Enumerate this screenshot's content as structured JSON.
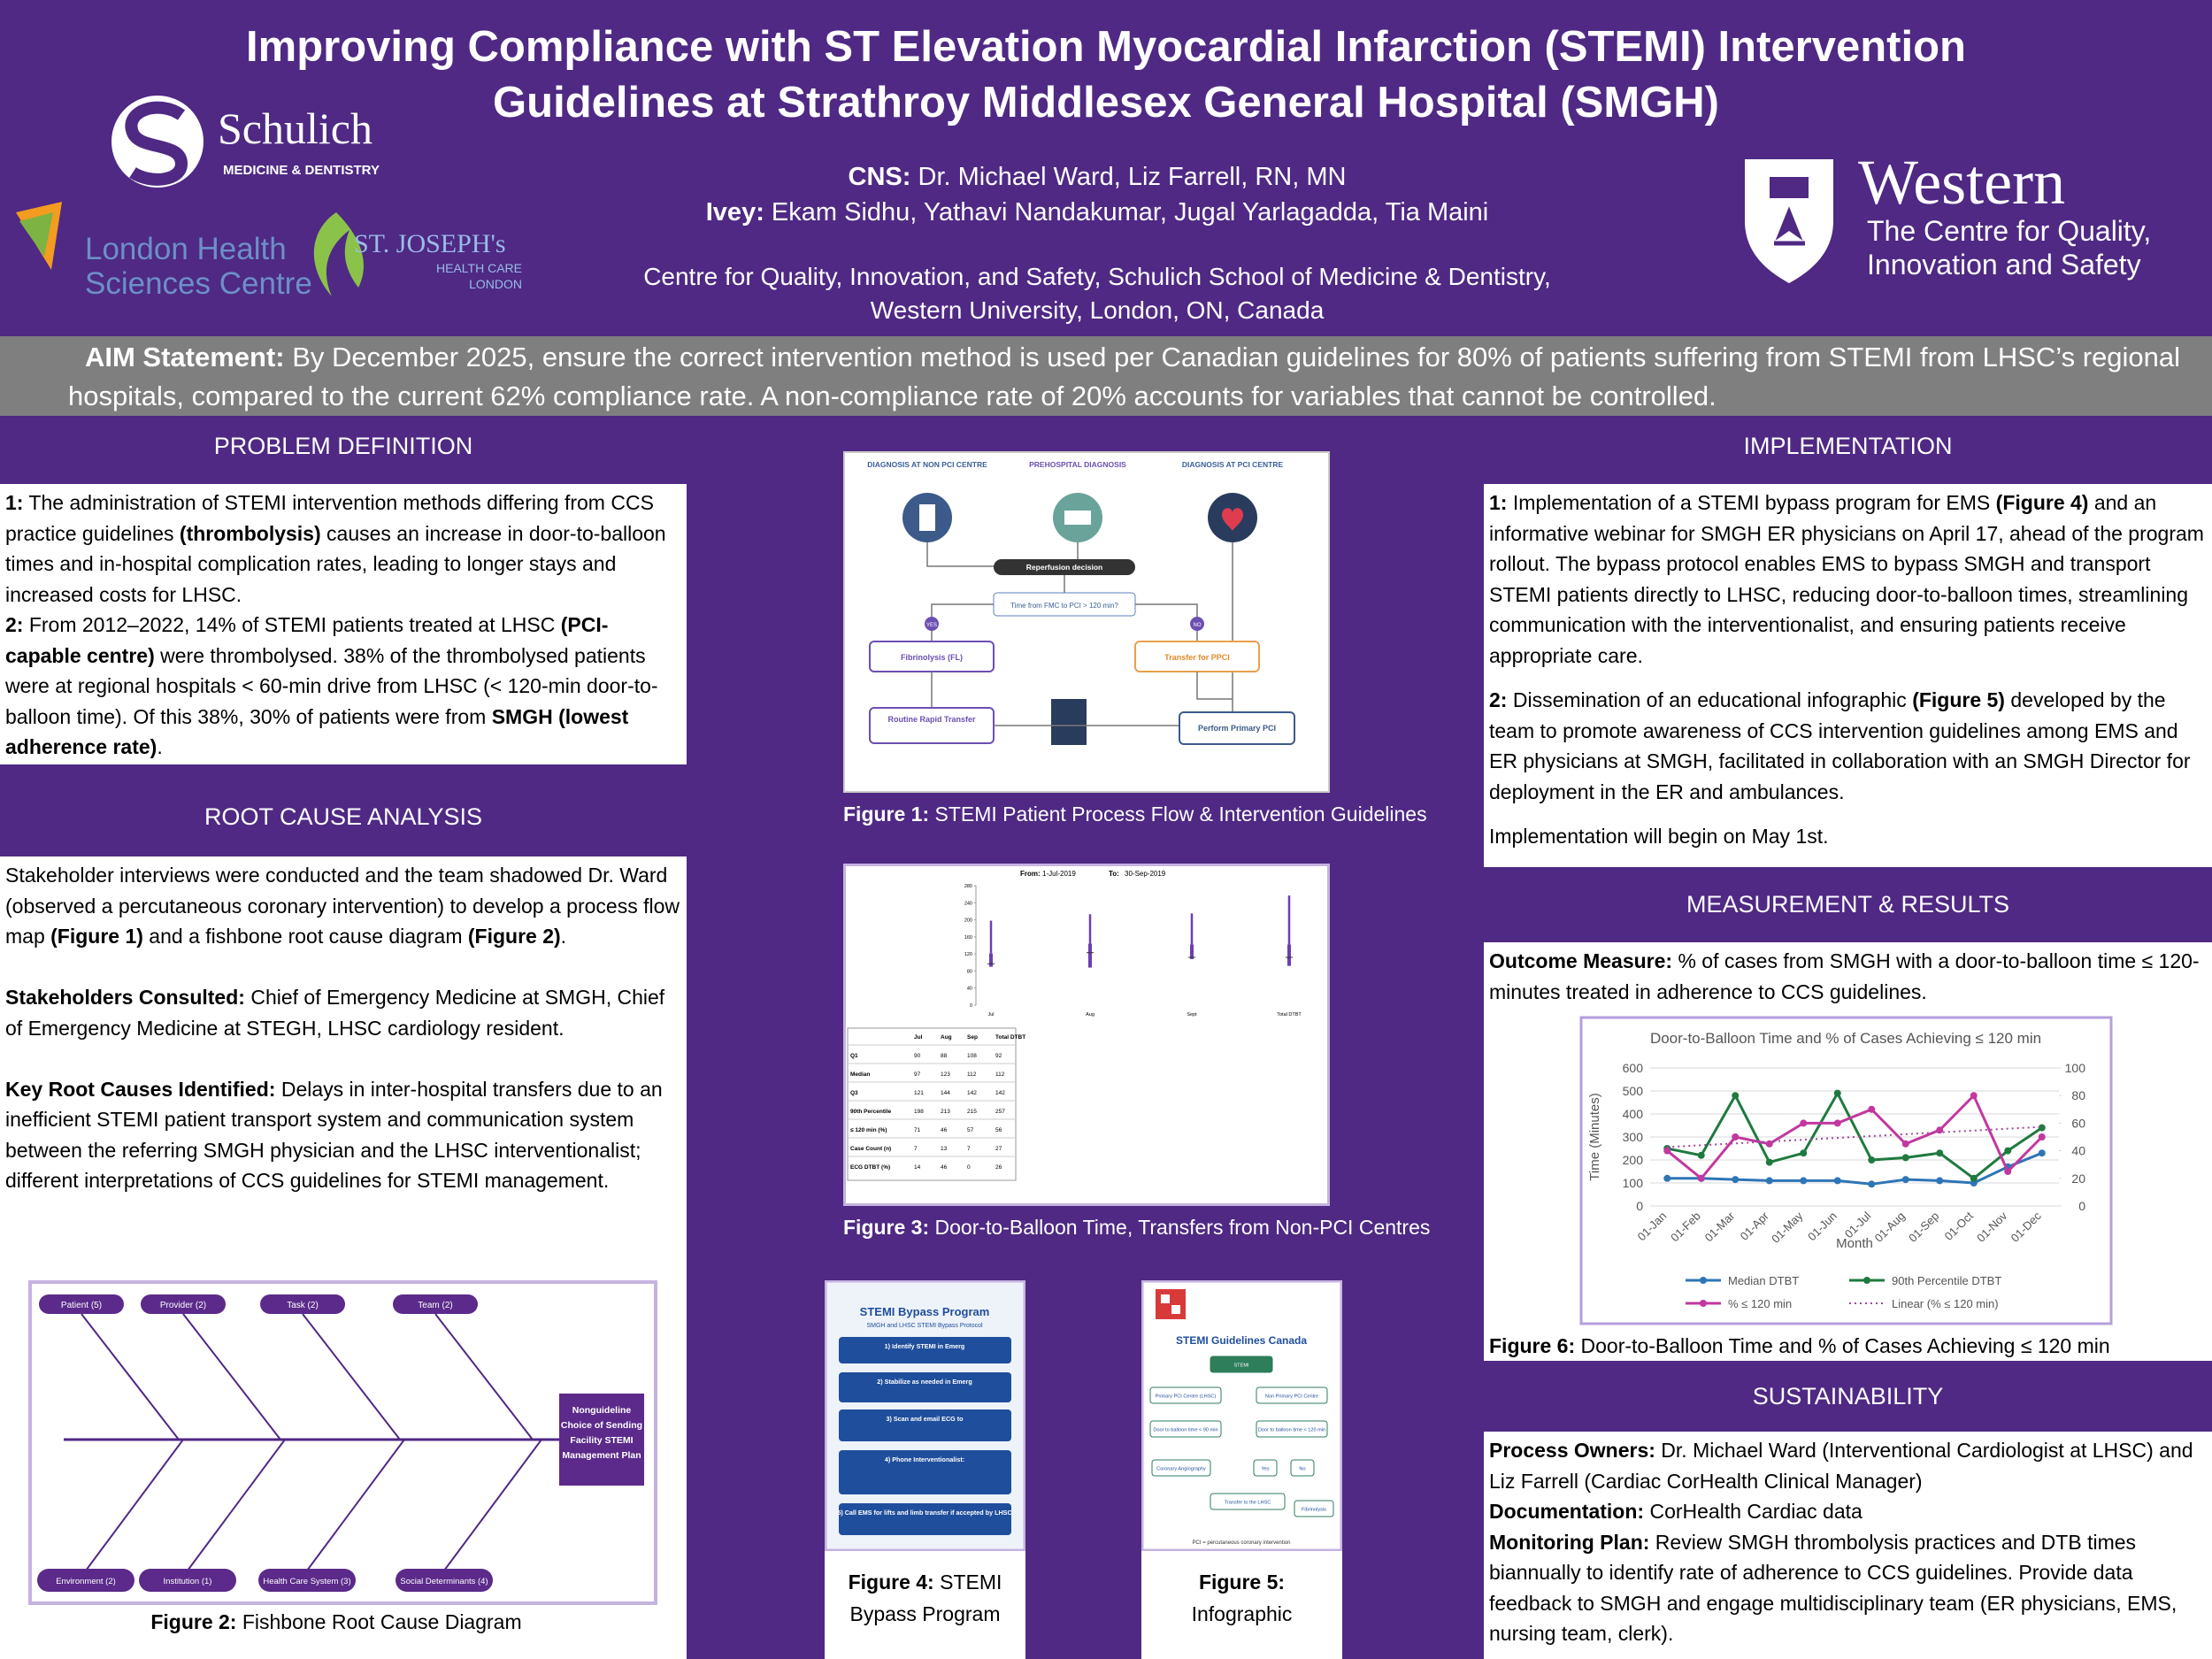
{
  "header": {
    "title_lines": [
      "Improving Compliance with ST Elevation Myocardial Infarction (STEMI) Intervention",
      "Guidelines at Strathroy Middlesex General Hospital (SMGH)"
    ],
    "authors": [
      [
        {
          "text": "CNS:",
          "bold": true
        },
        " Dr. Michael Ward, Liz Farrell, RN, MN"
      ],
      [
        {
          "text": "Ivey:",
          "bold": true
        },
        " Ekam Sidhu, Yathavi Nandakumar, Jugal Yarlagadda, Tia Maini"
      ]
    ],
    "affiliation_lines": [
      "Centre for Quality, Innovation, and Safety, Schulich School of Medicine & Dentistry,",
      "Western University, London, ON, Canada"
    ]
  },
  "logos": {
    "schulich": {
      "name": "Schulich",
      "sub": "MEDICINE & DENTISTRY"
    },
    "lhsc": [
      "London Health",
      "Sciences Centre"
    ],
    "st_josephs": {
      "name": "ST. JOSEPH's",
      "lines": [
        "HEALTH CARE",
        "LONDON"
      ]
    },
    "western": {
      "name": "Western",
      "lines": [
        "The Centre for Quality,",
        "Innovation and Safety"
      ]
    }
  },
  "aim": [
    {
      "text": "AIM Statement:",
      "bold": true
    },
    " By December 2025, ensure the correct intervention method is used per Canadian guidelines for 80% of patients suffering from STEMI from LHSC’s regional hospitals, compared to the current 62% compliance rate. A non-compliance rate of 20% accounts for variables that cannot be controlled."
  ],
  "problem_definition": {
    "heading": "PROBLEM DEFINITION",
    "paragraphs": [
      [
        {
          "text": "1:",
          "bold": true
        },
        " The administration of STEMI intervention methods differing from CCS practice guidelines ",
        {
          "text": "(thrombolysis)",
          "bold": true
        },
        " causes an increase in door-to-balloon times and in-hospital complication rates, leading to longer stays and increased costs for LHSC."
      ],
      [
        {
          "text": "2:",
          "bold": true
        },
        " From 2012–2022, 14% of STEMI patients treated at LHSC ",
        {
          "text": "(PCI-capable centre)",
          "bold": true
        },
        " were thrombolysed. 38% of the thrombolysed patients were at regional hospitals < 60-min drive from LHSC (< 120-min door-to-balloon time). Of this 38%, 30% of patients were from ",
        {
          "text": "SMGH (lowest adherence rate)",
          "bold": true
        },
        "."
      ]
    ]
  },
  "root_cause_analysis": {
    "heading": "ROOT CAUSE ANALYSIS",
    "paragraphs": [
      [
        "Stakeholder interviews were conducted and the team shadowed Dr. Ward (observed a percutaneous coronary intervention) to develop a process flow map ",
        {
          "text": "(Figure 1)",
          "bold": true
        },
        " and a fishbone root cause diagram ",
        {
          "text": "(Figure 2)",
          "bold": true
        },
        "."
      ],
      [
        {
          "text": "Stakeholders Consulted:",
          "bold": true
        },
        " Chief of Emergency Medicine at SMGH, Chief of Emergency Medicine at STEGH, LHSC cardiology resident."
      ],
      [
        {
          "text": "Key Root Causes Identified:",
          "bold": true
        },
        " Delays in inter-hospital transfers due to an inefficient STEMI patient transport system and communication system between the referring SMGH physician and the LHSC interventionalist; different interpretations of CCS guidelines for STEMI management."
      ]
    ]
  },
  "figure_1": {
    "columns": [
      "DIAGNOSIS AT NON PCI CENTRE",
      "PREHOSPITAL DIAGNOSIS",
      "DIAGNOSIS AT PCI CENTRE"
    ],
    "decision": "Reperfusion decision",
    "question": "Time from FMC to PCI > 120 min?",
    "yes": "YES",
    "no": "NO",
    "fibrinolysis": "Fibrinolysis (FL)",
    "transfer": "Transfer for PPCI",
    "rapid": "Routine Rapid Transfer",
    "ppci": "Perform Primary PCI",
    "caption": [
      {
        "text": "Figure 1:",
        "bold": true
      },
      " STEMI Patient Process Flow & Intervention Guidelines"
    ]
  },
  "figure_2": {
    "top": [
      "Patient (5)",
      "Provider (2)",
      "Task (2)",
      "Team (2)"
    ],
    "bottom": [
      "Environment (2)",
      "Institution (1)",
      "Health Care System (3)",
      "Social Determinants (4)"
    ],
    "head": [
      "Nonguideline",
      "Choice of Sending",
      "Facility STEMI",
      "Management Plan"
    ],
    "caption": [
      {
        "text": "Figure 2:",
        "bold": true
      },
      " Fishbone Root Cause Diagram"
    ]
  },
  "figure_3": {
    "range": [
      "From:",
      "1-Jul-2019",
      "To:",
      "30-Sep-2019"
    ],
    "ylim": [
      0,
      280
    ],
    "yticks": [
      0,
      40,
      80,
      120,
      160,
      200,
      240,
      280
    ],
    "plot_categories": [
      "Jul",
      "Aug",
      "Sept",
      "Total DTBT"
    ],
    "table": {
      "header": [
        "Jul",
        "Aug",
        "Sep",
        "Total DTBT"
      ],
      "rows": [
        {
          "label": "Q1",
          "values": [
            90,
            88,
            108,
            92
          ]
        },
        {
          "label": "Median",
          "values": [
            97,
            123,
            112,
            112
          ]
        },
        {
          "label": "Q3",
          "values": [
            121,
            144,
            142,
            142
          ]
        },
        {
          "label": "90th Percentile",
          "values": [
            198,
            213,
            215,
            257
          ]
        },
        {
          "label": "≤ 120 min (%)",
          "values": [
            71,
            46,
            57,
            56
          ]
        },
        {
          "label": "Case Count (n)",
          "values": [
            7,
            13,
            7,
            27
          ]
        },
        {
          "label": "ECG DTBT (%)",
          "values": [
            14,
            46,
            0,
            26
          ]
        }
      ]
    },
    "caption": [
      {
        "text": "Figure 3:",
        "bold": true
      },
      " Door-to-Balloon Time, Transfers from Non-PCI Centres"
    ]
  },
  "figure_4": {
    "title": "STEMI Bypass Program",
    "subtitle": "SMGH and LHSC STEMI Bypass Protocol",
    "steps": [
      "1) Identify STEMI in Emerg",
      "2) Stabilize as needed in Emerg",
      "3) Scan and email ECG to",
      "4) Phone Interventionalist:",
      "5) Call EMS for lifts and limb transfer if accepted by LHSC"
    ],
    "caption_lines": [
      [
        {
          "text": "Figure 4:",
          "bold": true
        },
        " STEMI"
      ],
      [
        "Bypass Program"
      ]
    ]
  },
  "figure_5": {
    "title": "STEMI Guidelines Canada",
    "nodes": [
      "STEMI",
      "Primary PCI Centre (LHSC)",
      "Non Primary PCI Centre",
      "Door to balloon time < 90 min",
      "Door to balloon time < 120 min",
      "Coronary Angiography",
      "Yes",
      "No",
      "Transfer to the LHSC",
      "Fibrinolysis"
    ],
    "footnote": "PCI = percutaneous coronary intervention",
    "caption_lines": [
      [
        {
          "text": "Figure 5:",
          "bold": true
        }
      ],
      [
        "Infographic"
      ]
    ]
  },
  "implementation": {
    "heading": "IMPLEMENTATION",
    "paragraphs": [
      [
        {
          "text": "1:",
          "bold": true
        },
        " Implementation of a STEMI bypass program for EMS ",
        {
          "text": "(Figure 4)",
          "bold": true
        },
        " and an informative webinar for SMGH ER physicians on April 17, ahead of the program rollout. The bypass protocol enables EMS to bypass SMGH and transport STEMI patients directly to LHSC, reducing door-to-balloon times, streamlining communication with the interventionalist, and ensuring patients receive appropriate care."
      ],
      [
        {
          "text": "2:",
          "bold": true
        },
        " Dissemination of an educational infographic ",
        {
          "text": "(Figure 5)",
          "bold": true
        },
        " developed by the team to promote awareness of CCS intervention guidelines among EMS and ER physicians at SMGH, facilitated in collaboration with an SMGH Director for deployment in the ER and ambulances."
      ],
      [
        "Implementation will begin on May 1st."
      ]
    ]
  },
  "measurement": {
    "heading": "MEASUREMENT & RESULTS",
    "paragraphs": [
      [
        {
          "text": "Outcome Measure:",
          "bold": true
        },
        " % of cases from SMGH with a door-to-balloon time ≤ 120-minutes treated in adherence to CCS guidelines."
      ]
    ],
    "caption": [
      {
        "text": "Figure 6:",
        "bold": true
      },
      " Door-to-Balloon Time and % of Cases Achieving ≤ 120 min"
    ]
  },
  "sustainability": {
    "heading": "SUSTAINABILITY",
    "paragraphs": [
      [
        {
          "text": "Process Owners:",
          "bold": true
        },
        " Dr. Michael Ward (Interventional Cardiologist at LHSC) and Liz Farrell (Cardiac CorHealth Clinical Manager)"
      ],
      [
        {
          "text": "Documentation:",
          "bold": true
        },
        " CorHealth Cardiac data"
      ],
      [
        {
          "text": "Monitoring Plan:",
          "bold": true
        },
        " Review SMGH thrombolysis practices and DTB times biannually to identify rate of adherence to CCS guidelines. Provide data feedback to SMGH and engage multidisciplinary team (ER physicians, EMS, nursing team, clerk)."
      ]
    ]
  },
  "chart_data": {
    "type": "line",
    "title": "Door-to-Balloon Time and % of Cases Achieving ≤ 120 min",
    "y_label": "Time (Minutes)",
    "x_label": "Month",
    "categories": [
      "01-Jan",
      "01-Feb",
      "01-Mar",
      "01-Apr",
      "01-May",
      "01-Jun",
      "01-Jul",
      "01-Aug",
      "01-Sep",
      "01-Oct",
      "01-Nov",
      "01-Dec"
    ],
    "ylim": [
      0,
      600
    ],
    "yticks": [
      0,
      100,
      200,
      300,
      400,
      500,
      600
    ],
    "y2lim": [
      0,
      100
    ],
    "y2ticks": [
      0,
      20,
      40,
      60,
      80,
      100
    ],
    "series": [
      {
        "name": "Median DTBT",
        "color": "#2e75b6",
        "values": [
          120,
          120,
          115,
          110,
          110,
          110,
          95,
          115,
          110,
          100,
          170,
          230
        ]
      },
      {
        "name": "90th Percentile DTBT",
        "color": "#1f7a3f",
        "values": [
          250,
          220,
          480,
          190,
          230,
          490,
          200,
          210,
          230,
          120,
          240,
          340
        ]
      },
      {
        "name": "% ≤ 120 min",
        "color": "#c2389f",
        "axis": "y2",
        "values": [
          40,
          20,
          50,
          45,
          60,
          60,
          70,
          45,
          55,
          80,
          25,
          50
        ],
        "trendline": {
          "name": "Linear (% ≤ 120 min)",
          "color": "#a0479a"
        }
      }
    ]
  }
}
